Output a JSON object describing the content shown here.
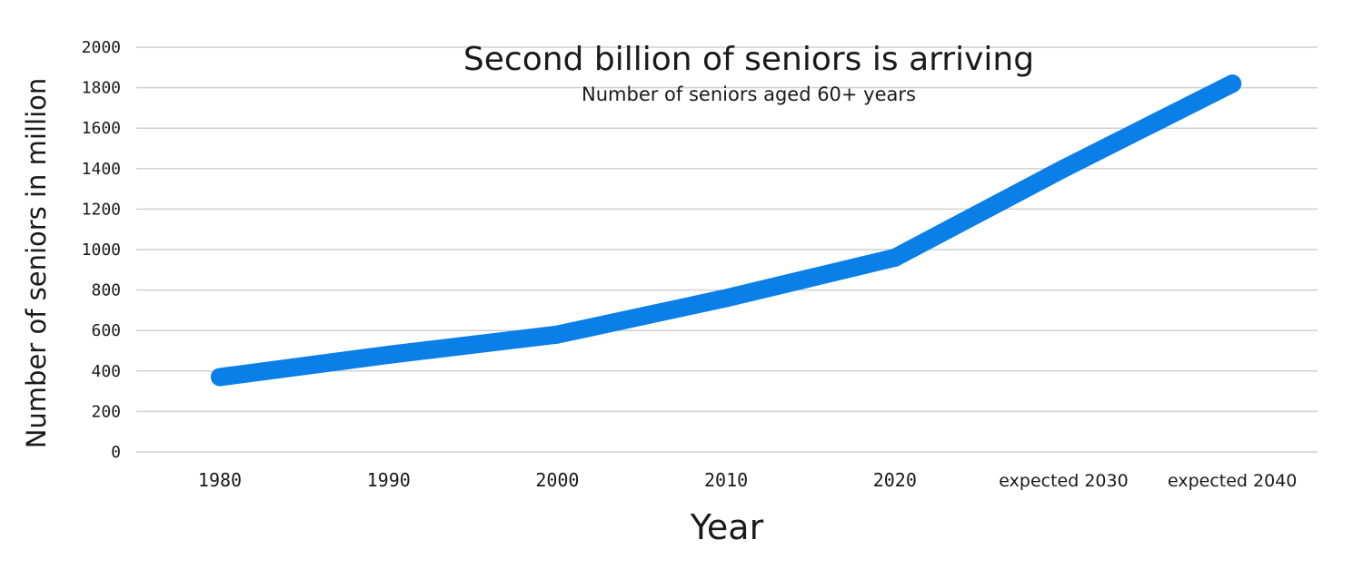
{
  "chart_data": {
    "type": "line",
    "title": "Second billion of seniors is arriving",
    "subtitle": "Number of seniors aged 60+ years",
    "xlabel": "Year",
    "ylabel": "Number of seniors in million",
    "categories": [
      "1980",
      "1990",
      "2000",
      "2010",
      "2020",
      "expected 2030",
      "expected 2040"
    ],
    "series": [
      {
        "values": [
          370,
          480,
          580,
          760,
          960,
          1400,
          1820
        ]
      }
    ],
    "ylim": [
      0,
      2000
    ],
    "yticks": [
      0,
      200,
      400,
      600,
      800,
      1000,
      1200,
      1400,
      1600,
      1800,
      2000
    ],
    "grid": true,
    "legend": "none",
    "colors": {
      "line": "#0a7fe8",
      "grid": "#d0d0d0",
      "text": "#1a1a1a"
    }
  }
}
